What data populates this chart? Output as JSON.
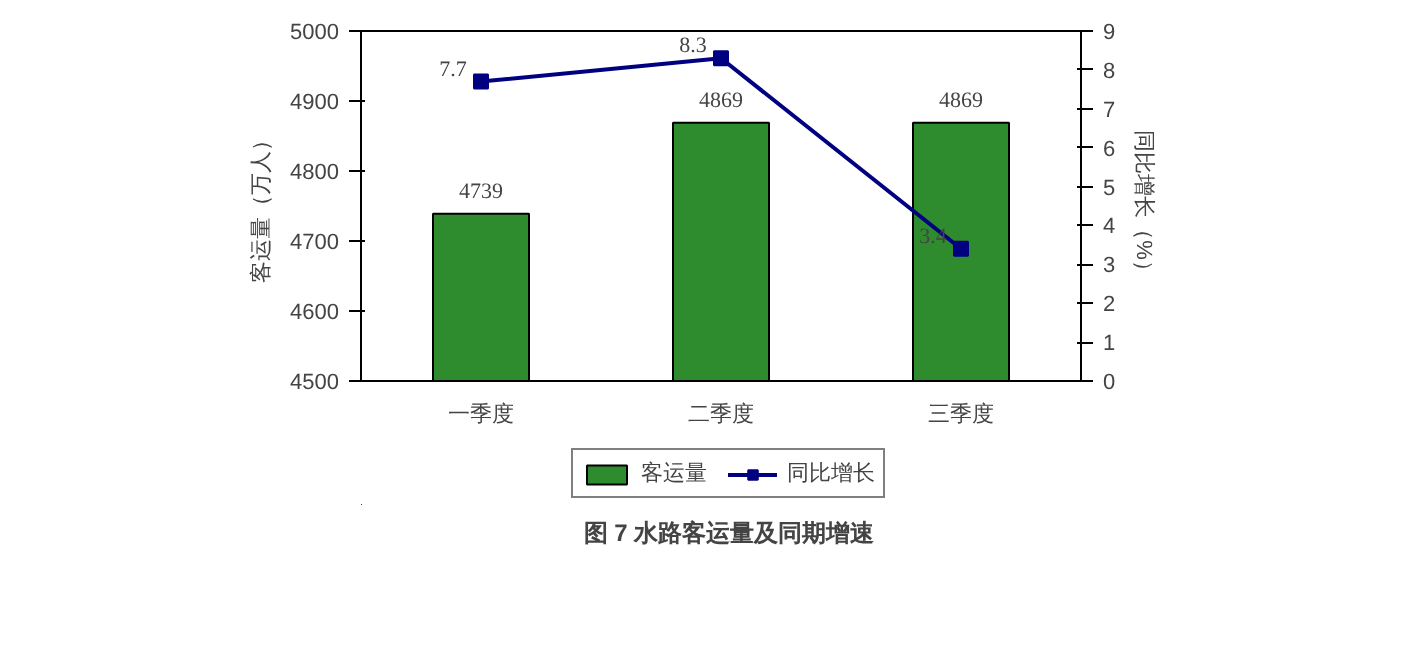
{
  "chart_data": {
    "type": "bar",
    "title": "图 7 水路客运量及同期增速",
    "ylabel": "客运量（万人）",
    "y2label": "同比增长（%）",
    "categories": [
      "一季度",
      "二季度",
      "三季度"
    ],
    "series": [
      {
        "name": "客运量",
        "color": "#2e8b2e",
        "values": [
          4739,
          4869,
          4869
        ]
      },
      {
        "name": "同比增长",
        "type": "line",
        "axis": "y2",
        "color": "#000080",
        "marker": "square",
        "values": [
          7.7,
          8.3,
          3.4
        ]
      }
    ],
    "ylim": [
      4500,
      5000
    ],
    "yticks": [
      4500,
      4600,
      4700,
      4800,
      4900,
      5000
    ],
    "y2lim": [
      0,
      9
    ],
    "y2ticks": [
      0,
      1,
      2,
      3,
      4,
      5,
      6,
      7,
      8,
      9
    ],
    "data_labels": true,
    "legend": "bottom",
    "grid": false
  }
}
